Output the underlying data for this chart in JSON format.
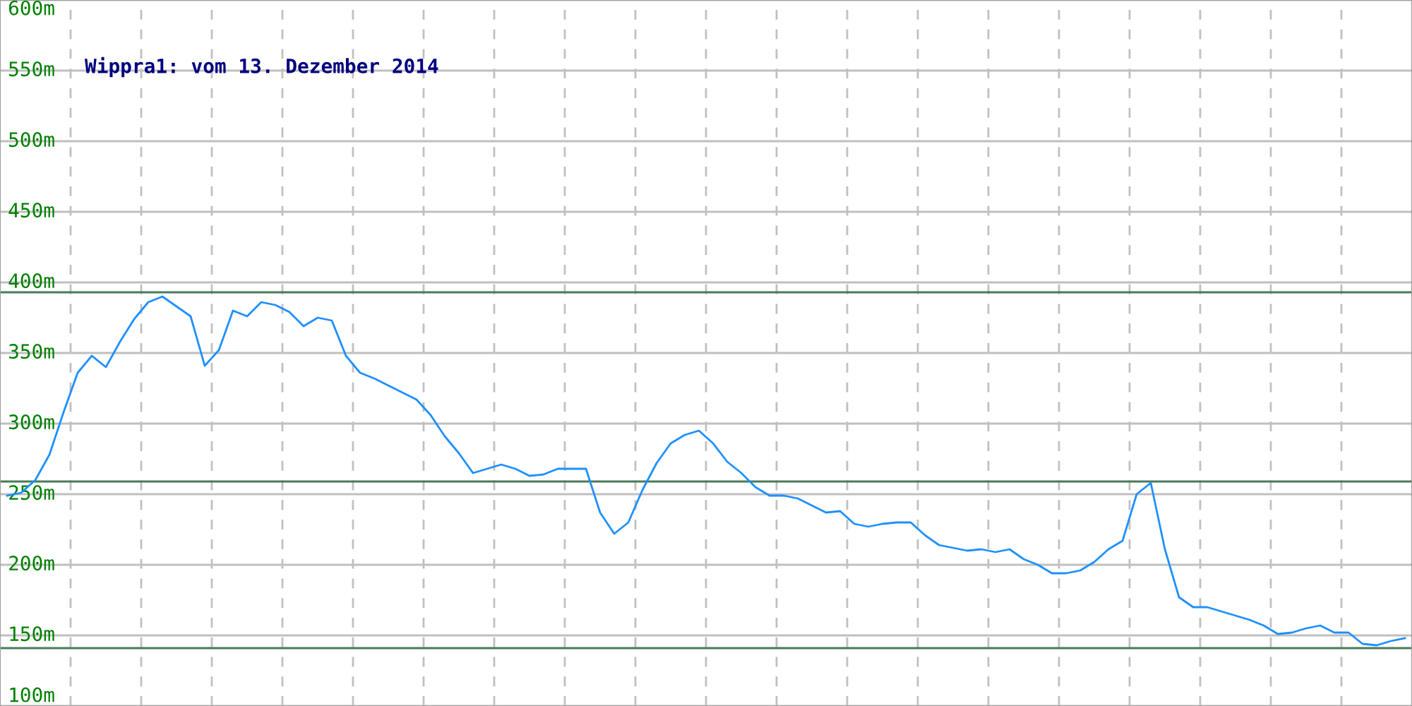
{
  "chart_data": {
    "type": "line",
    "title": "Wippra1: vom 13. Dezember 2014",
    "color": "#1e90ff",
    "categories": [
      null,
      null,
      null,
      null,
      null,
      null,
      null,
      null,
      null,
      null,
      null,
      null,
      null,
      null,
      null,
      null,
      null,
      null,
      null,
      null,
      null,
      null,
      null,
      null,
      null,
      null,
      null,
      null,
      null,
      null,
      null,
      null,
      null,
      null,
      null,
      null,
      null,
      null,
      null,
      null,
      null,
      null,
      null,
      null,
      null,
      null,
      null,
      null,
      null,
      null,
      null,
      null,
      null,
      null,
      null,
      null,
      null,
      null,
      null,
      null,
      null,
      null,
      null,
      null,
      null,
      null,
      null,
      null,
      null,
      null,
      null,
      null,
      null,
      null,
      null,
      null,
      null,
      null,
      null,
      null,
      null,
      null,
      null,
      null,
      null,
      null,
      null,
      null,
      null,
      null,
      null,
      null,
      null,
      null,
      null,
      null,
      null,
      null,
      null,
      null
    ],
    "values": [
      249,
      251,
      260,
      278,
      308,
      336,
      348,
      340,
      358,
      374,
      386,
      390,
      383,
      376,
      341,
      352,
      380,
      376,
      386,
      384,
      379,
      369,
      375,
      373,
      348,
      336,
      332,
      327,
      322,
      317,
      306,
      291,
      279,
      265,
      268,
      271,
      268,
      263,
      264,
      268,
      268,
      268,
      237,
      222,
      230,
      253,
      272,
      286,
      292,
      295,
      286,
      273,
      265,
      255,
      249,
      249,
      247,
      242,
      237,
      238,
      229,
      227,
      229,
      230,
      230,
      221,
      214,
      212,
      210,
      211,
      209,
      211,
      204,
      200,
      194,
      194,
      196,
      202,
      211,
      217,
      250,
      258,
      211,
      177,
      170,
      170,
      167,
      164,
      161,
      157,
      151,
      152,
      155,
      157,
      152,
      152,
      144,
      143,
      146,
      148
    ],
    "ylim": [
      100,
      600
    ],
    "yticks": [
      {
        "value": 100,
        "label": "100m"
      },
      {
        "value": 150,
        "label": "150m"
      },
      {
        "value": 200,
        "label": "200m"
      },
      {
        "value": 250,
        "label": "250m"
      },
      {
        "value": 300,
        "label": "300m"
      },
      {
        "value": 350,
        "label": "350m"
      },
      {
        "value": 400,
        "label": "400m"
      },
      {
        "value": 450,
        "label": "450m"
      },
      {
        "value": 500,
        "label": "500m"
      },
      {
        "value": 550,
        "label": "550m"
      },
      {
        "value": 600,
        "label": "600m"
      }
    ],
    "ref_lines": [
      {
        "axis": "y",
        "value": 393,
        "color": "#4a7a5a"
      },
      {
        "axis": "y",
        "value": 259,
        "color": "#4a7a5a"
      },
      {
        "axis": "y",
        "value": 141,
        "color": "#4a7a5a"
      }
    ],
    "grid": true,
    "tick_labels": "y",
    "marker": "none",
    "line_style": "solid"
  }
}
